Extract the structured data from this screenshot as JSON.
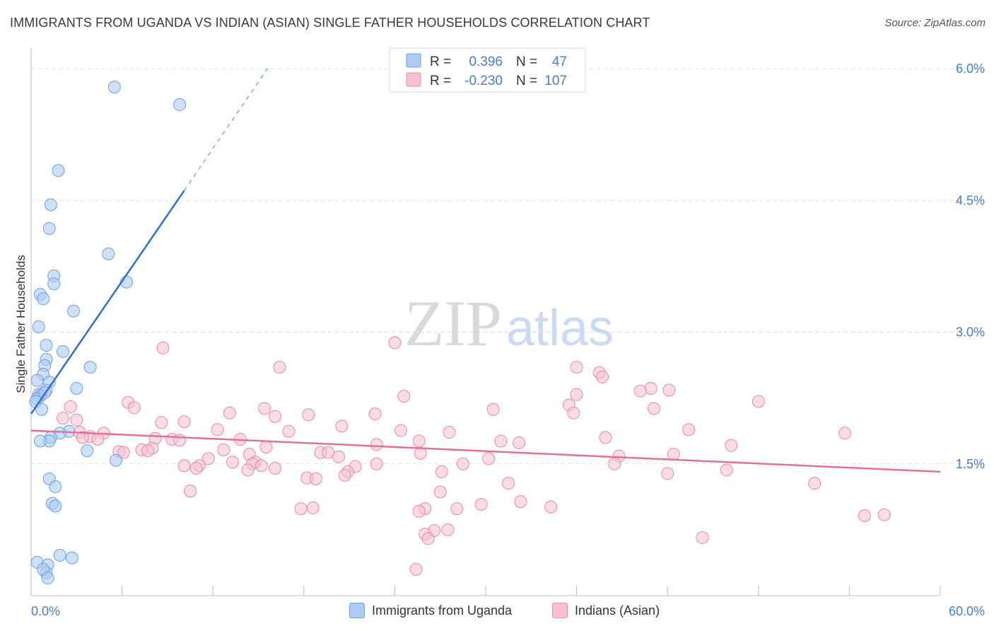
{
  "title": "IMMIGRANTS FROM UGANDA VS INDIAN (ASIAN) SINGLE FATHER HOUSEHOLDS CORRELATION CHART",
  "source": "Source: ZipAtlas.com",
  "watermark": {
    "zip": "ZIP",
    "atlas": "atlas"
  },
  "colors": {
    "blue_fill": "#aecbf5",
    "blue_stroke": "#6f9fe0",
    "blue_line": "#2f6fd0",
    "pink_fill": "#f7bfd1",
    "pink_stroke": "#e88aaa",
    "pink_line": "#e2709a",
    "axis_value": "#4a7cc9",
    "grid": "#dddddd"
  },
  "legend_top": {
    "rows": [
      {
        "r_label": "R =",
        "r_value": "0.396",
        "n_label": "N =",
        "n_value": "47"
      },
      {
        "r_label": "R =",
        "r_value": "-0.230",
        "n_label": "N =",
        "n_value": "107"
      }
    ]
  },
  "legend_bottom": [
    "Immigrants from Uganda",
    "Indians (Asian)"
  ],
  "chart_data": {
    "type": "scatter",
    "title": "IMMIGRANTS FROM UGANDA VS INDIAN (ASIAN) SINGLE FATHER HOUSEHOLDS CORRELATION CHART",
    "xlabel": "",
    "ylabel": "Single Father Households",
    "xlim": [
      0,
      60
    ],
    "ylim": [
      0,
      6.2
    ],
    "x_tick_labels": [
      "0.0%",
      "60.0%"
    ],
    "y_ticks": [
      1.5,
      3.0,
      4.5,
      6.0
    ],
    "y_tick_labels": [
      "1.5%",
      "3.0%",
      "4.5%",
      "6.0%"
    ],
    "grid": true,
    "series": [
      {
        "name": "Immigrants from Uganda",
        "color": "blue",
        "R": 0.396,
        "N": 47,
        "trend": {
          "x0": 0.0,
          "y0": 2.07,
          "x1": 10.1,
          "y1": 4.61,
          "dash_x1": 15.6,
          "dash_y1": 6.0
        },
        "points": [
          [
            5.5,
            5.79
          ],
          [
            9.8,
            5.59
          ],
          [
            1.8,
            4.84
          ],
          [
            1.3,
            4.45
          ],
          [
            1.2,
            4.18
          ],
          [
            5.1,
            3.89
          ],
          [
            6.3,
            3.57
          ],
          [
            1.5,
            3.64
          ],
          [
            1.5,
            3.55
          ],
          [
            0.6,
            3.43
          ],
          [
            0.8,
            3.38
          ],
          [
            2.8,
            3.24
          ],
          [
            0.5,
            3.06
          ],
          [
            1.0,
            2.85
          ],
          [
            2.1,
            2.78
          ],
          [
            1.0,
            2.69
          ],
          [
            3.9,
            2.6
          ],
          [
            0.9,
            2.62
          ],
          [
            0.8,
            2.52
          ],
          [
            1.2,
            2.43
          ],
          [
            0.4,
            2.45
          ],
          [
            1.0,
            2.34
          ],
          [
            3.0,
            2.36
          ],
          [
            0.5,
            2.29
          ],
          [
            0.6,
            2.27
          ],
          [
            0.4,
            2.24
          ],
          [
            0.9,
            2.31
          ],
          [
            0.3,
            2.21
          ],
          [
            0.7,
            2.12
          ],
          [
            2.5,
            1.87
          ],
          [
            1.9,
            1.85
          ],
          [
            1.3,
            1.8
          ],
          [
            1.2,
            1.76
          ],
          [
            0.6,
            1.76
          ],
          [
            3.7,
            1.65
          ],
          [
            5.6,
            1.54
          ],
          [
            1.2,
            1.33
          ],
          [
            1.6,
            1.24
          ],
          [
            1.4,
            1.05
          ],
          [
            1.6,
            1.02
          ],
          [
            1.9,
            0.46
          ],
          [
            2.7,
            0.43
          ],
          [
            1.1,
            0.35
          ],
          [
            1.0,
            0.26
          ],
          [
            0.4,
            0.38
          ],
          [
            0.8,
            0.3
          ],
          [
            1.1,
            0.2
          ]
        ]
      },
      {
        "name": "Indians (Asian)",
        "color": "pink",
        "R": -0.23,
        "N": 107,
        "trend": {
          "x0": 0.0,
          "y0": 1.88,
          "x1": 60.0,
          "y1": 1.41
        },
        "points": [
          [
            24.0,
            2.88
          ],
          [
            8.7,
            2.82
          ],
          [
            16.4,
            2.6
          ],
          [
            36.0,
            2.6
          ],
          [
            37.5,
            2.54
          ],
          [
            37.7,
            2.49
          ],
          [
            40.9,
            2.36
          ],
          [
            40.2,
            2.33
          ],
          [
            42.1,
            2.34
          ],
          [
            36.0,
            2.29
          ],
          [
            24.6,
            2.27
          ],
          [
            48.0,
            2.21
          ],
          [
            35.5,
            2.17
          ],
          [
            41.1,
            2.13
          ],
          [
            6.4,
            2.2
          ],
          [
            6.8,
            2.14
          ],
          [
            15.4,
            2.13
          ],
          [
            22.7,
            2.07
          ],
          [
            30.5,
            2.12
          ],
          [
            35.8,
            2.08
          ],
          [
            13.1,
            2.08
          ],
          [
            18.3,
            2.06
          ],
          [
            16.1,
            2.04
          ],
          [
            2.6,
            2.15
          ],
          [
            3.0,
            2.0
          ],
          [
            2.1,
            2.02
          ],
          [
            10.1,
            1.98
          ],
          [
            8.6,
            1.97
          ],
          [
            20.5,
            1.93
          ],
          [
            12.3,
            1.89
          ],
          [
            17.0,
            1.87
          ],
          [
            24.4,
            1.88
          ],
          [
            27.6,
            1.86
          ],
          [
            43.4,
            1.89
          ],
          [
            53.7,
            1.85
          ],
          [
            3.2,
            1.86
          ],
          [
            4.8,
            1.85
          ],
          [
            3.9,
            1.81
          ],
          [
            3.4,
            1.8
          ],
          [
            4.4,
            1.78
          ],
          [
            8.2,
            1.79
          ],
          [
            9.3,
            1.78
          ],
          [
            9.8,
            1.77
          ],
          [
            13.8,
            1.78
          ],
          [
            25.6,
            1.76
          ],
          [
            31.0,
            1.76
          ],
          [
            32.2,
            1.74
          ],
          [
            22.8,
            1.72
          ],
          [
            15.5,
            1.69
          ],
          [
            37.9,
            1.8
          ],
          [
            46.2,
            1.71
          ],
          [
            14.4,
            1.61
          ],
          [
            19.1,
            1.63
          ],
          [
            19.6,
            1.63
          ],
          [
            25.7,
            1.62
          ],
          [
            12.7,
            1.66
          ],
          [
            8.0,
            1.68
          ],
          [
            7.3,
            1.66
          ],
          [
            7.7,
            1.65
          ],
          [
            5.8,
            1.64
          ],
          [
            6.1,
            1.63
          ],
          [
            20.3,
            1.58
          ],
          [
            30.2,
            1.56
          ],
          [
            38.8,
            1.59
          ],
          [
            42.4,
            1.61
          ],
          [
            11.7,
            1.56
          ],
          [
            13.3,
            1.52
          ],
          [
            14.8,
            1.52
          ],
          [
            14.6,
            1.5
          ],
          [
            15.2,
            1.48
          ],
          [
            16.1,
            1.45
          ],
          [
            21.4,
            1.47
          ],
          [
            22.8,
            1.5
          ],
          [
            28.5,
            1.5
          ],
          [
            38.5,
            1.5
          ],
          [
            11.1,
            1.48
          ],
          [
            10.1,
            1.48
          ],
          [
            10.9,
            1.45
          ],
          [
            14.3,
            1.43
          ],
          [
            20.9,
            1.41
          ],
          [
            20.7,
            1.37
          ],
          [
            27.1,
            1.41
          ],
          [
            18.2,
            1.34
          ],
          [
            18.8,
            1.33
          ],
          [
            42.0,
            1.39
          ],
          [
            45.9,
            1.43
          ],
          [
            51.7,
            1.28
          ],
          [
            31.5,
            1.28
          ],
          [
            27.0,
            1.18
          ],
          [
            10.5,
            1.19
          ],
          [
            32.3,
            1.07
          ],
          [
            29.7,
            1.04
          ],
          [
            34.3,
            1.01
          ],
          [
            18.6,
            1.0
          ],
          [
            17.8,
            0.99
          ],
          [
            26.0,
            0.99
          ],
          [
            28.1,
            0.99
          ],
          [
            25.6,
            0.96
          ],
          [
            56.3,
            0.92
          ],
          [
            44.3,
            0.66
          ],
          [
            26.6,
            0.74
          ],
          [
            27.5,
            0.75
          ],
          [
            26.0,
            0.7
          ],
          [
            26.2,
            0.65
          ],
          [
            25.4,
            0.3
          ],
          [
            55.0,
            0.91
          ],
          [
            0.7,
            2.3
          ]
        ]
      }
    ]
  }
}
